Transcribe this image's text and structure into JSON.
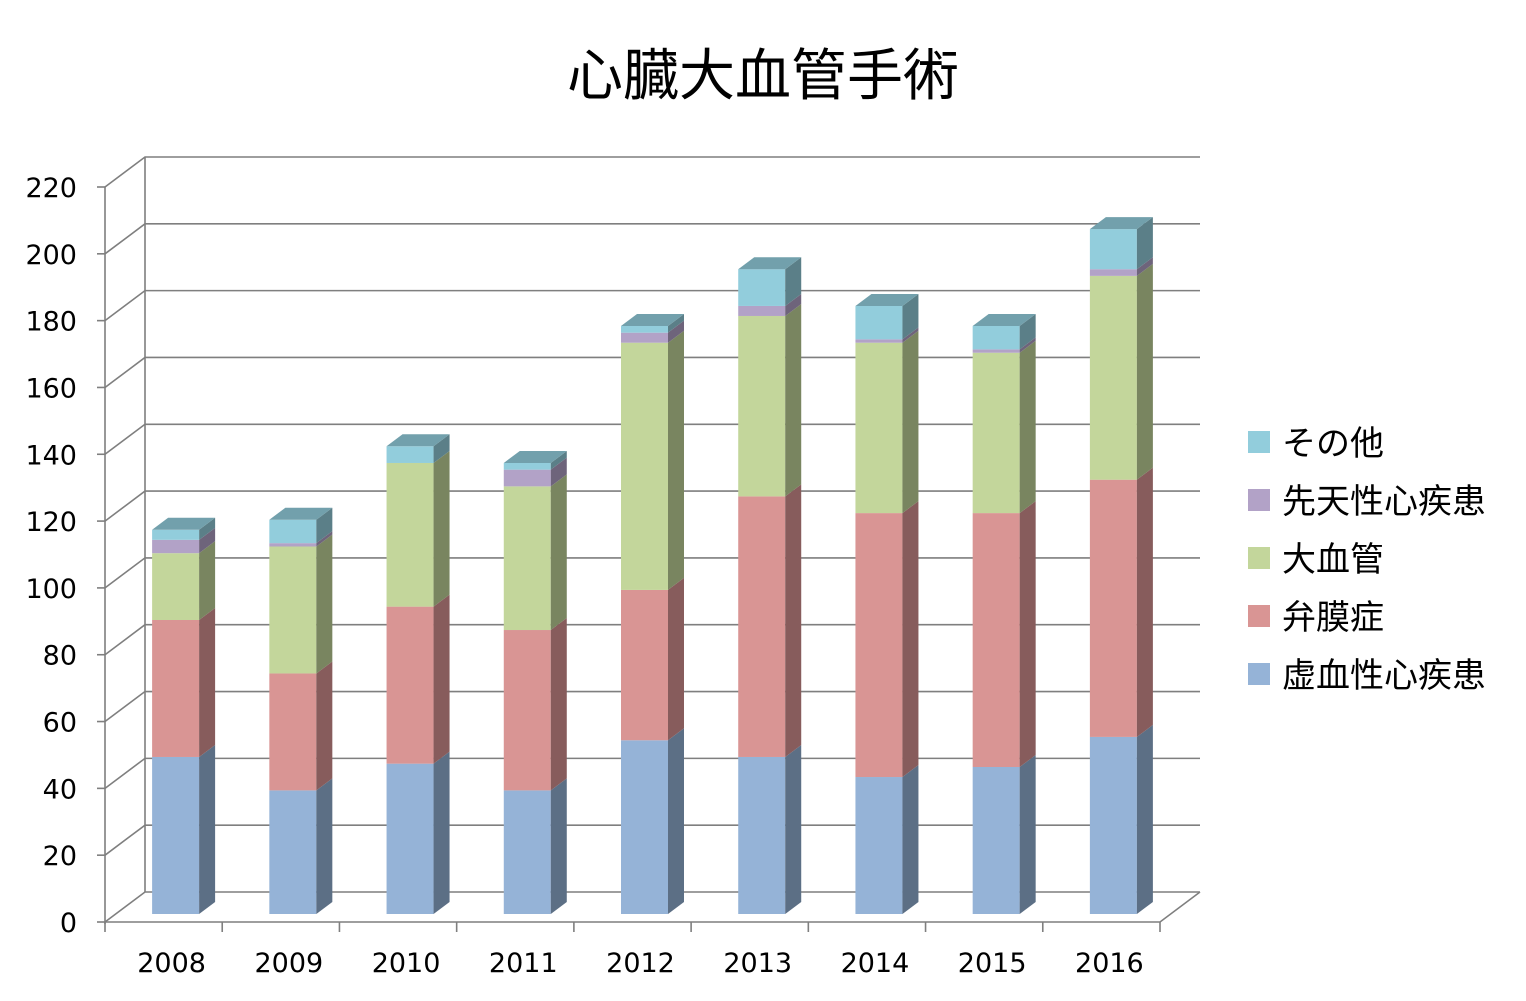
{
  "chart_data": {
    "type": "bar",
    "stacked": true,
    "three_d": true,
    "title": "心臓大血管手術",
    "xlabel": "",
    "ylabel": "",
    "categories": [
      "2008",
      "2009",
      "2010",
      "2011",
      "2012",
      "2013",
      "2014",
      "2015",
      "2016"
    ],
    "ylim": [
      0,
      220
    ],
    "yticks": [
      "0",
      "20",
      "40",
      "60",
      "80",
      "100",
      "120",
      "140",
      "160",
      "180",
      "200",
      "220"
    ],
    "grid": true,
    "legend_position": "right",
    "series": [
      {
        "name": "虚血性心疾患",
        "color": "#95B3D7",
        "values": [
          47,
          37,
          45,
          37,
          52,
          47,
          41,
          44,
          53
        ]
      },
      {
        "name": "弁膜症",
        "color": "#D99594",
        "values": [
          41,
          35,
          47,
          48,
          45,
          78,
          79,
          76,
          77
        ]
      },
      {
        "name": "大血管",
        "color": "#C3D69B",
        "values": [
          20,
          38,
          43,
          43,
          74,
          54,
          51,
          48,
          61
        ]
      },
      {
        "name": "先天性心疾患",
        "color": "#B2A2C7",
        "values": [
          4,
          1,
          0,
          5,
          3,
          3,
          1,
          1,
          2
        ]
      },
      {
        "name": "その他",
        "color": "#92CDDC",
        "values": [
          3,
          7,
          5,
          2,
          2,
          11,
          10,
          7,
          12
        ]
      }
    ]
  }
}
